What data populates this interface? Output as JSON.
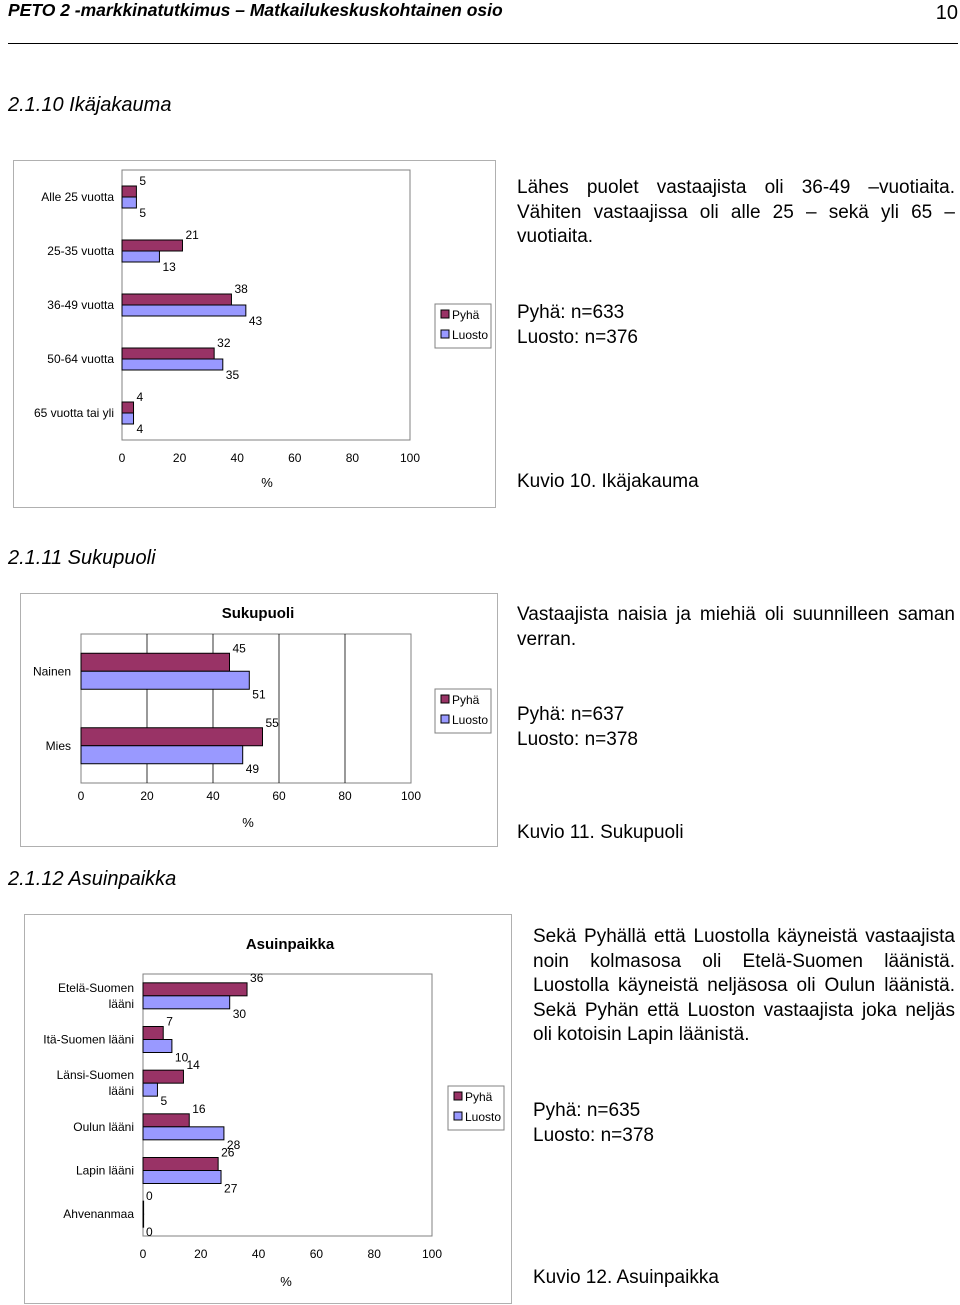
{
  "header": {
    "doc_title": "PETO 2 -markkinatutkimus – Matkailukeskuskohtainen osio",
    "page_number": "10"
  },
  "section_age": {
    "heading": "2.1.10 Ikäjakauma",
    "text": "Lähes puolet vastaajista oli 36-49 –vuotiaita. Vähiten vastaajissa oli alle 25 – sekä yli 65 –vuotiaita.",
    "stats": [
      "Pyhä: n=633",
      "Luosto: n=376"
    ],
    "caption": "Kuvio 10. Ikäjakauma"
  },
  "section_gender": {
    "heading": "2.1.11 Sukupuoli",
    "text": "Vastaajista naisia ja miehiä oli suunnilleen saman verran.",
    "stats": [
      "Pyhä: n=637",
      "Luosto: n=378"
    ],
    "caption": "Kuvio 11. Sukupuoli"
  },
  "section_residence": {
    "heading": "2.1.12 Asuinpaikka",
    "text": "Sekä Pyhällä että Luostolla käyneistä vastaajista noin kolmasosa oli Etelä-Suomen läänistä. Luostolla käyneistä neljäsosa oli Oulun läänistä. Sekä Pyhän että Luoston vastaajista joka neljäs oli kotoisin Lapin läänistä.",
    "stats": [
      "Pyhä: n=635",
      "Luosto: n=378"
    ],
    "caption": "Kuvio 12. Asuinpaikka"
  },
  "chart_data": [
    {
      "type": "bar",
      "orientation": "horizontal",
      "title": "Ikäjakauma",
      "xlabel": "%",
      "xlim": [
        0,
        100
      ],
      "xticks": [
        0,
        20,
        40,
        60,
        80,
        100
      ],
      "categories": [
        "Alle 25 vuotta",
        "25-35 vuotta",
        "36-49 vuotta",
        "50-64 vuotta",
        "65 vuotta tai yli"
      ],
      "series": [
        {
          "name": "Pyhä",
          "values": [
            5,
            21,
            38,
            32,
            4
          ]
        },
        {
          "name": "Luosto",
          "values": [
            5,
            13,
            43,
            35,
            4
          ]
        }
      ],
      "grid": false,
      "legend": "right",
      "colors": {
        "Pyhä": "#993366",
        "Luosto": "#9999ff"
      }
    },
    {
      "type": "bar",
      "orientation": "horizontal",
      "title": "Sukupuoli",
      "xlabel": "%",
      "xlim": [
        0,
        100
      ],
      "xticks": [
        0,
        20,
        40,
        60,
        80,
        100
      ],
      "categories": [
        "Nainen",
        "Mies"
      ],
      "series": [
        {
          "name": "Pyhä",
          "values": [
            45,
            55
          ]
        },
        {
          "name": "Luosto",
          "values": [
            51,
            49
          ]
        }
      ],
      "grid": true,
      "legend": "right",
      "colors": {
        "Pyhä": "#993366",
        "Luosto": "#9999ff"
      }
    },
    {
      "type": "bar",
      "orientation": "horizontal",
      "title": "Asuinpaikka",
      "xlabel": "%",
      "xlim": [
        0,
        100
      ],
      "xticks": [
        0,
        20,
        40,
        60,
        80,
        100
      ],
      "categories": [
        [
          "Etelä-Suomen",
          "lääni"
        ],
        [
          "Itä-Suomen lääni"
        ],
        [
          "Länsi-Suomen",
          "lääni"
        ],
        [
          "Oulun lääni"
        ],
        [
          "Lapin lääni"
        ],
        [
          "Ahvenanmaa"
        ]
      ],
      "series": [
        {
          "name": "Pyhä",
          "values": [
            36,
            7,
            14,
            16,
            26,
            0
          ]
        },
        {
          "name": "Luosto",
          "values": [
            30,
            10,
            5,
            28,
            27,
            0
          ]
        }
      ],
      "grid": false,
      "legend": "right",
      "colors": {
        "Pyhä": "#993366",
        "Luosto": "#9999ff"
      }
    }
  ]
}
